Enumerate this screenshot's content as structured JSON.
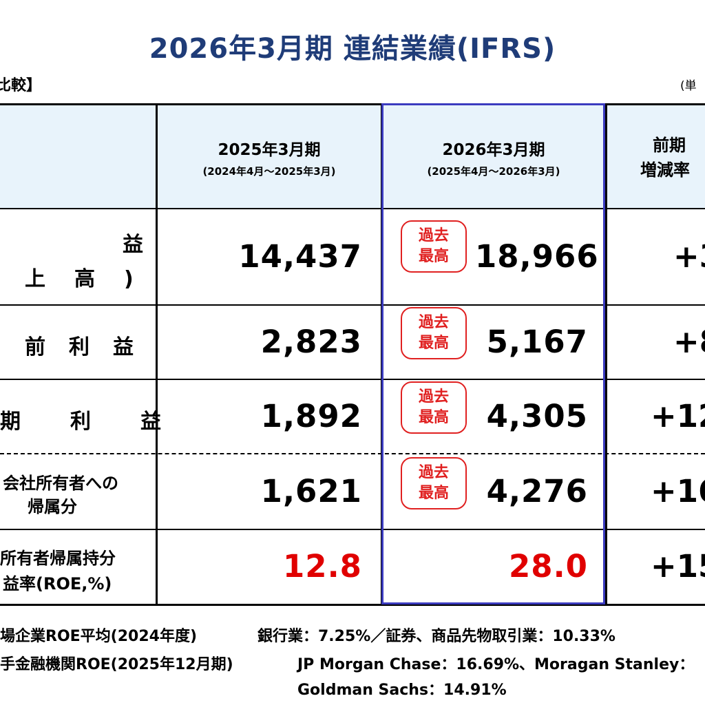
{
  "title": "2026年3月期 連結業績(IFRS)",
  "section_label": "比較】",
  "unit_label": "(単",
  "colors": {
    "title": "#1f3c78",
    "header_bg": "#e8f3fb",
    "highlight_border": "#3b3bbf",
    "red": "#e00000"
  },
  "header": {
    "col1_main": "2025年3月期",
    "col1_sub": "(2024年4月～2025年3月)",
    "col2_main": "2026年3月期",
    "col2_sub": "(2025年4月～2026年3月)",
    "col3_line1": "前期",
    "col3_line2": "増減率"
  },
  "badge": {
    "line1": "過去",
    "line2": "最高"
  },
  "rows": [
    {
      "label_line1": "益",
      "label_line2": "上　高　)",
      "prev": "14,437",
      "curr": "18,966",
      "change": "+3"
    },
    {
      "label_line1": "前　利　益",
      "prev": "2,823",
      "curr": "5,167",
      "change": "+8"
    },
    {
      "label_line1": "期　　利　　益",
      "prev": "1,892",
      "curr": "4,305",
      "change": "+12"
    },
    {
      "label_line1": "会社所有者への",
      "label_line2": "帰属分",
      "prev": "1,621",
      "curr": "4,276",
      "change": "+16"
    },
    {
      "label_line1": "所有者帰属持分",
      "label_line2": "益率(ROE,%)",
      "prev": "12.8",
      "curr": "28.0",
      "change": "+15"
    }
  ],
  "notes": {
    "line1_label": "場企業ROE平均(2024年度)",
    "line1_value": "銀行業：7.25%／証券、商品先物取引業：10.33%",
    "line2_label": "手金融機関ROE(2025年12月期)",
    "line2_value": "JP Morgan Chase：16.69%、Moragan Stanley：",
    "line3_value": "Goldman Sachs：14.91%"
  }
}
